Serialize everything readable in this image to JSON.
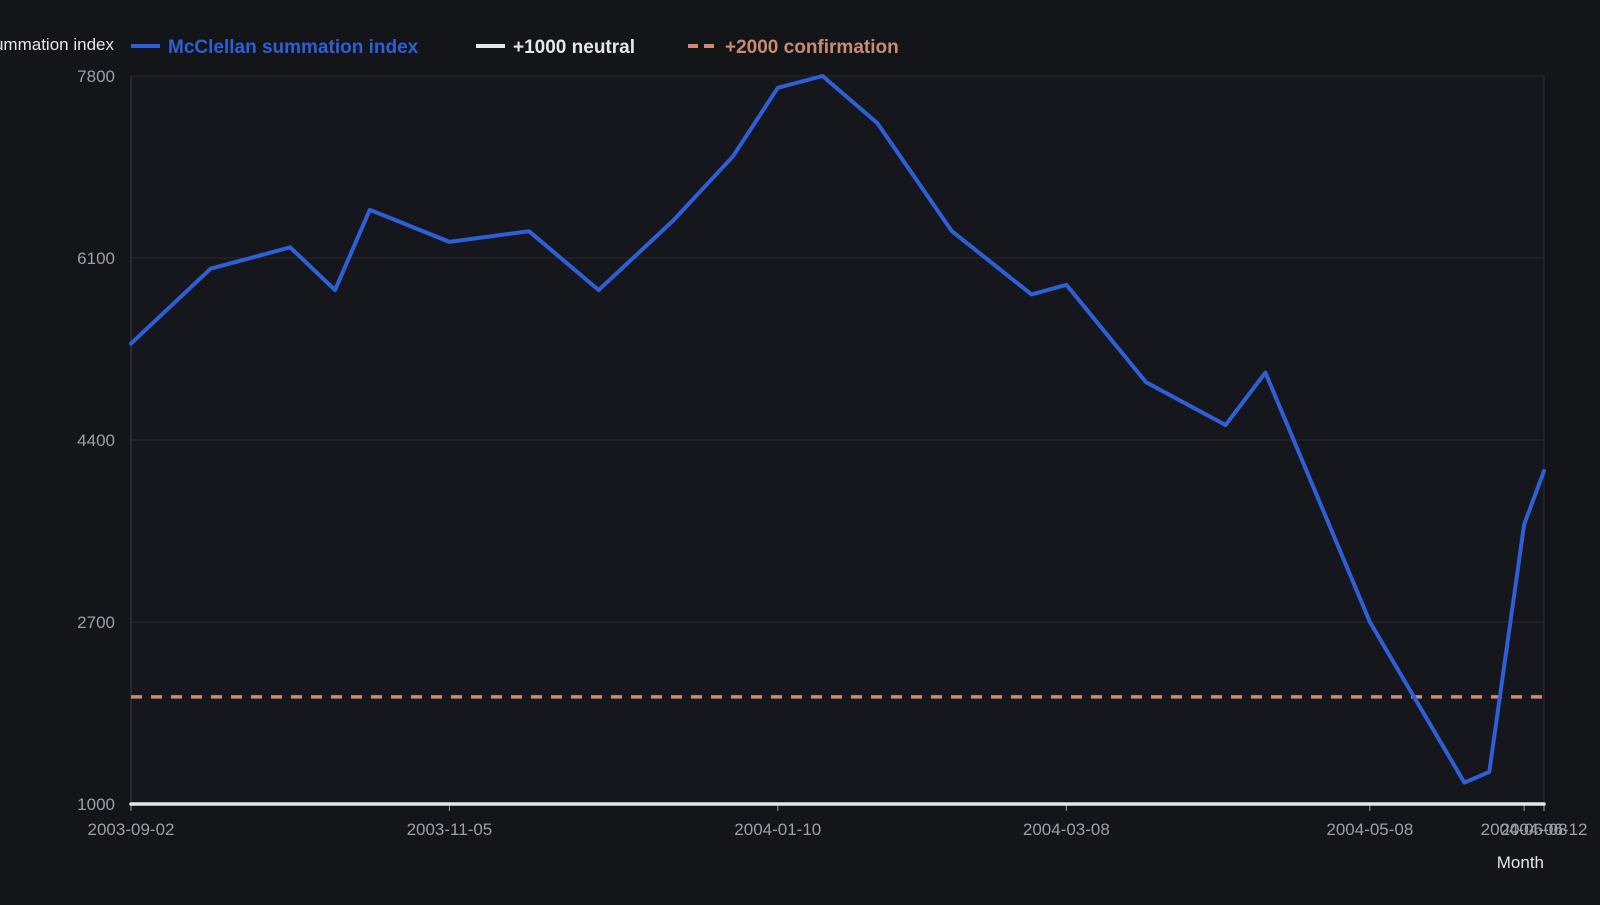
{
  "chart_data": {
    "type": "line",
    "ylabel": "McClellan summation index",
    "xlabel": "Month",
    "ylim": [
      1000,
      7800
    ],
    "y_ticks": [
      1000,
      2700,
      4400,
      6100,
      7800
    ],
    "x_tick_labels": [
      "2003-09-02",
      "2003-11-05",
      "2004-01-10",
      "2004-03-08",
      "2004-05-08",
      "2004-06-08",
      "2004-06-12"
    ],
    "grid": true,
    "legend_position": "top",
    "series": [
      {
        "name": "McClellan summation index",
        "color": "#2f5fd6",
        "style": "solid",
        "x": [
          "2003-09-02",
          "2003-09-18",
          "2003-10-04",
          "2003-10-13",
          "2003-10-20",
          "2003-11-05",
          "2003-11-21",
          "2003-12-05",
          "2003-12-20",
          "2004-01-01",
          "2004-01-10",
          "2004-01-19",
          "2004-01-30",
          "2004-02-14",
          "2004-03-01",
          "2004-03-08",
          "2004-03-24",
          "2004-04-09",
          "2004-04-17",
          "2004-05-08",
          "2004-05-27",
          "2004-06-01",
          "2004-06-08",
          "2004-06-12"
        ],
        "y": [
          5300,
          6000,
          6200,
          5800,
          6550,
          6250,
          6350,
          5800,
          6450,
          7050,
          7690,
          7800,
          7360,
          6350,
          5760,
          5850,
          4940,
          4540,
          5030,
          2700,
          1200,
          1300,
          3610,
          4110
        ]
      },
      {
        "name": "+1000 neutral",
        "color": "#e6e6e6",
        "style": "solid",
        "x": [
          "2003-09-02",
          "2004-06-12"
        ],
        "y": [
          1000,
          1000
        ]
      },
      {
        "name": "+2000 confirmation",
        "color": "#c98a76",
        "style": "dashed",
        "x": [
          "2003-09-02",
          "2004-06-12"
        ],
        "y": [
          2000,
          2000
        ]
      }
    ]
  }
}
